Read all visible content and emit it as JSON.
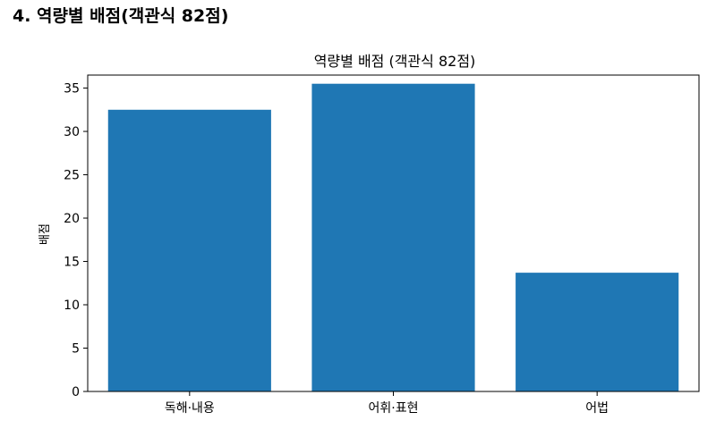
{
  "page": {
    "heading": "4. 역량별 배점(객관식 82점)"
  },
  "chart_data": {
    "type": "bar",
    "title": "역량별 배점 (객관식 82점)",
    "xlabel": "",
    "ylabel": "배점",
    "categories": [
      "독해·내용",
      "어휘·표현",
      "어법"
    ],
    "values": [
      32.5,
      35.5,
      13.7
    ],
    "ylim": [
      0,
      36.5
    ],
    "yticks": [
      0,
      5,
      10,
      15,
      20,
      25,
      30,
      35
    ],
    "bar_color": "#1f77b4",
    "grid": false,
    "legend": "none"
  }
}
